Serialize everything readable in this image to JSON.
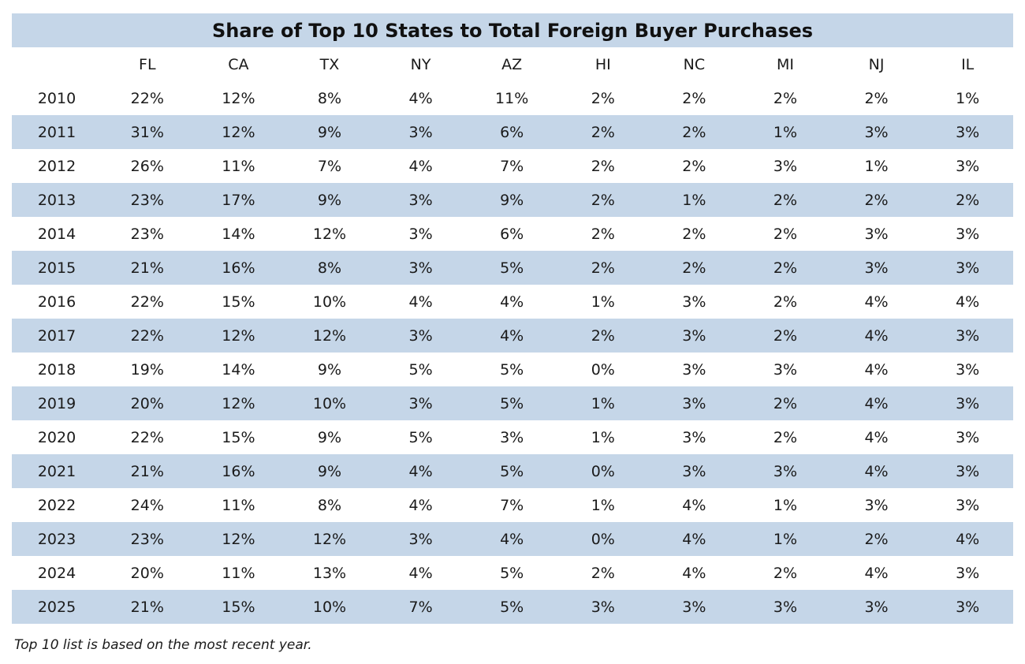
{
  "chart_data": {
    "type": "table",
    "title": "Share of Top 10 States to Total Foreign Buyer Purchases",
    "columns": [
      "FL",
      "CA",
      "TX",
      "NY",
      "AZ",
      "HI",
      "NC",
      "MI",
      "NJ",
      "IL"
    ],
    "rows": [
      {
        "year": "2010",
        "values": [
          "22%",
          "12%",
          "8%",
          "4%",
          "11%",
          "2%",
          "2%",
          "2%",
          "2%",
          "1%"
        ]
      },
      {
        "year": "2011",
        "values": [
          "31%",
          "12%",
          "9%",
          "3%",
          "6%",
          "2%",
          "2%",
          "1%",
          "3%",
          "3%"
        ]
      },
      {
        "year": "2012",
        "values": [
          "26%",
          "11%",
          "7%",
          "4%",
          "7%",
          "2%",
          "2%",
          "3%",
          "1%",
          "3%"
        ]
      },
      {
        "year": "2013",
        "values": [
          "23%",
          "17%",
          "9%",
          "3%",
          "9%",
          "2%",
          "1%",
          "2%",
          "2%",
          "2%"
        ]
      },
      {
        "year": "2014",
        "values": [
          "23%",
          "14%",
          "12%",
          "3%",
          "6%",
          "2%",
          "2%",
          "2%",
          "3%",
          "3%"
        ]
      },
      {
        "year": "2015",
        "values": [
          "21%",
          "16%",
          "8%",
          "3%",
          "5%",
          "2%",
          "2%",
          "2%",
          "3%",
          "3%"
        ]
      },
      {
        "year": "2016",
        "values": [
          "22%",
          "15%",
          "10%",
          "4%",
          "4%",
          "1%",
          "3%",
          "2%",
          "4%",
          "4%"
        ]
      },
      {
        "year": "2017",
        "values": [
          "22%",
          "12%",
          "12%",
          "3%",
          "4%",
          "2%",
          "3%",
          "2%",
          "4%",
          "3%"
        ]
      },
      {
        "year": "2018",
        "values": [
          "19%",
          "14%",
          "9%",
          "5%",
          "5%",
          "0%",
          "3%",
          "3%",
          "4%",
          "3%"
        ]
      },
      {
        "year": "2019",
        "values": [
          "20%",
          "12%",
          "10%",
          "3%",
          "5%",
          "1%",
          "3%",
          "2%",
          "4%",
          "3%"
        ]
      },
      {
        "year": "2020",
        "values": [
          "22%",
          "15%",
          "9%",
          "5%",
          "3%",
          "1%",
          "3%",
          "2%",
          "4%",
          "3%"
        ]
      },
      {
        "year": "2021",
        "values": [
          "21%",
          "16%",
          "9%",
          "4%",
          "5%",
          "0%",
          "3%",
          "3%",
          "4%",
          "3%"
        ]
      },
      {
        "year": "2022",
        "values": [
          "24%",
          "11%",
          "8%",
          "4%",
          "7%",
          "1%",
          "4%",
          "1%",
          "3%",
          "3%"
        ]
      },
      {
        "year": "2023",
        "values": [
          "23%",
          "12%",
          "12%",
          "3%",
          "4%",
          "0%",
          "4%",
          "1%",
          "2%",
          "4%"
        ]
      },
      {
        "year": "2024",
        "values": [
          "20%",
          "11%",
          "13%",
          "4%",
          "5%",
          "2%",
          "4%",
          "2%",
          "4%",
          "3%"
        ]
      },
      {
        "year": "2025",
        "values": [
          "21%",
          "15%",
          "10%",
          "7%",
          "5%",
          "3%",
          "3%",
          "3%",
          "3%",
          "3%"
        ]
      }
    ],
    "note": "Top 10 list is based on the most recent year.",
    "colors": {
      "band": "#c5d6e8",
      "text": "#1a1a1a"
    }
  }
}
